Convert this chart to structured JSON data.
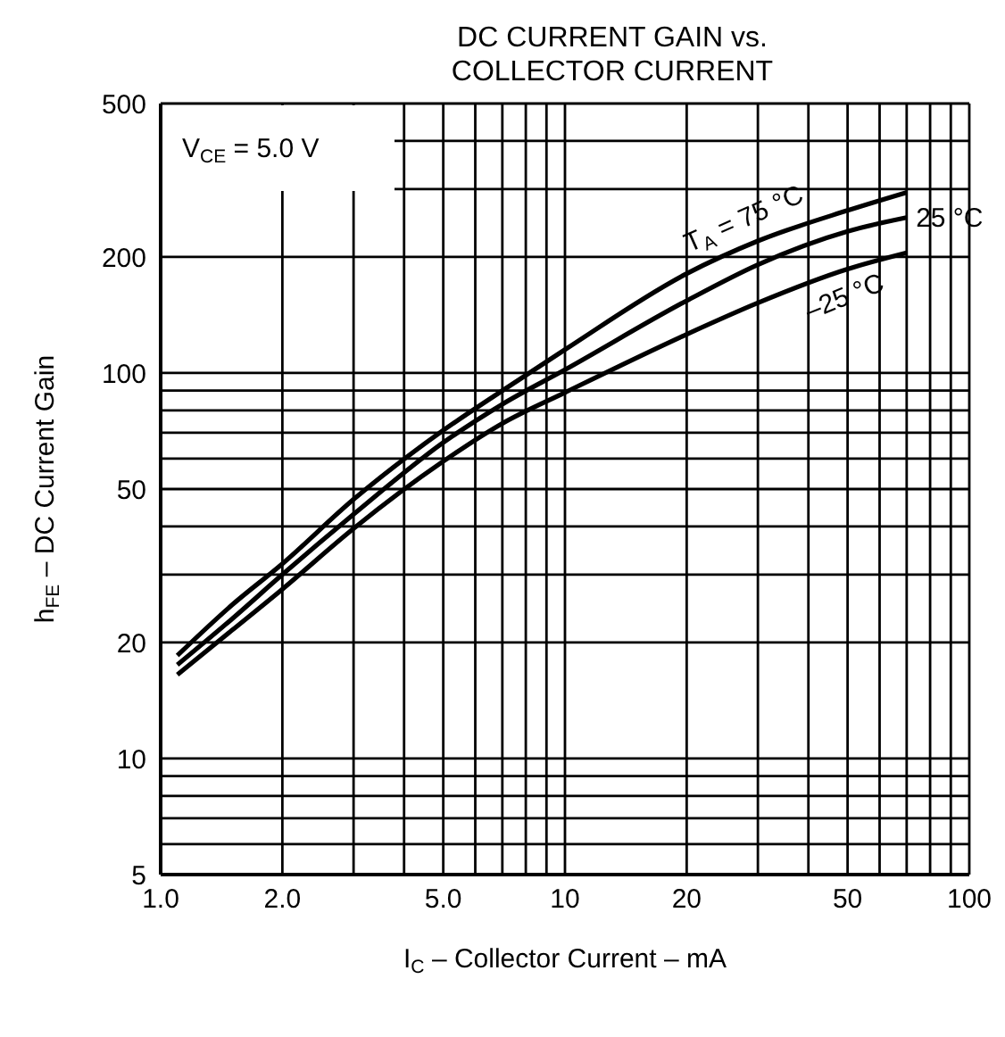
{
  "chart_data": {
    "type": "line",
    "title": "DC CURRENT GAIN vs. COLLECTOR CURRENT",
    "xlabel": "I$_{C}$ – Collector Current – mA",
    "ylabel": "h$_{FE}$ – DC Current Gain",
    "annotations": [
      "V$_{CE}$ = 5.0 V"
    ],
    "log": "xy",
    "grid": true,
    "marker": "none",
    "line_style": "solid",
    "xlim": [
      1,
      100
    ],
    "ylim": [
      5,
      500
    ],
    "xticks": [
      {
        "value": 1,
        "label": "1.0"
      },
      {
        "value": 2,
        "label": "2.0"
      },
      {
        "value": 3,
        "label": null
      },
      {
        "value": 4,
        "label": null
      },
      {
        "value": 5,
        "label": "5.0"
      },
      {
        "value": 6,
        "label": null
      },
      {
        "value": 7,
        "label": null
      },
      {
        "value": 8,
        "label": null
      },
      {
        "value": 9,
        "label": null
      },
      10,
      20,
      {
        "value": 30,
        "label": null
      },
      {
        "value": 40,
        "label": null
      },
      50,
      {
        "value": 60,
        "label": null
      },
      {
        "value": 70,
        "label": null
      },
      {
        "value": 80,
        "label": null
      },
      {
        "value": 90,
        "label": null
      },
      100
    ],
    "yticks": [
      5,
      {
        "value": 6,
        "label": null
      },
      {
        "value": 7,
        "label": null
      },
      {
        "value": 8,
        "label": null
      },
      {
        "value": 9,
        "label": null
      },
      10,
      20,
      {
        "value": 30,
        "label": null
      },
      {
        "value": 40,
        "label": null
      },
      50,
      {
        "value": 60,
        "label": null
      },
      {
        "value": 70,
        "label": null
      },
      {
        "value": 80,
        "label": null
      },
      {
        "value": 90,
        "label": null
      },
      100,
      200,
      {
        "value": 300,
        "label": null
      },
      {
        "value": 400,
        "label": null
      },
      500
    ],
    "x": [
      1.1,
      1.5,
      2,
      3,
      5,
      7,
      10,
      20,
      30,
      50,
      70
    ],
    "series": [
      {
        "name": "T$_{A}$ = 75 °C",
        "color": "#000000",
        "values": [
          18.5,
          25,
          32,
          47,
          71,
          90,
          115,
          181,
          220,
          264,
          294
        ]
      },
      {
        "name": "25 °C",
        "color": "#000000",
        "values": [
          17.5,
          23,
          30,
          43,
          66,
          83,
          102,
          154,
          191,
          233,
          253
        ]
      },
      {
        "name": "–25 °C",
        "color": "#000000",
        "values": [
          16.5,
          21.5,
          27.5,
          39.5,
          59,
          74,
          89,
          126,
          152,
          186,
          205
        ]
      }
    ]
  }
}
